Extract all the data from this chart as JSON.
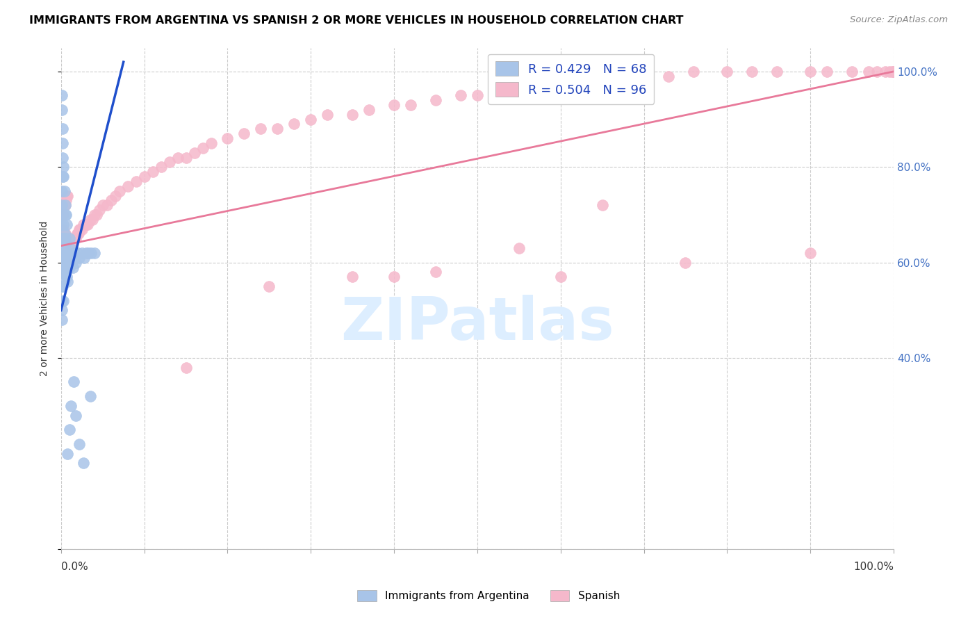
{
  "title": "IMMIGRANTS FROM ARGENTINA VS SPANISH 2 OR MORE VEHICLES IN HOUSEHOLD CORRELATION CHART",
  "source": "Source: ZipAtlas.com",
  "ylabel": "2 or more Vehicles in Household",
  "argentina_R": 0.429,
  "argentina_N": 68,
  "spanish_R": 0.504,
  "spanish_N": 96,
  "argentina_color": "#a8c4e8",
  "argentina_edge": "#a8c4e8",
  "spanish_color": "#f5b8cb",
  "spanish_edge": "#f5b8cb",
  "argentina_line_color": "#1f4fcc",
  "spanish_line_color": "#e8799a",
  "legend_argentina_label": "Immigrants from Argentina",
  "legend_spanish_label": "Spanish",
  "watermark_text": "ZIPatlas",
  "watermark_color": "#ddeeff",
  "xlim": [
    0.0,
    1.0
  ],
  "ylim": [
    0.0,
    1.05
  ],
  "ytick_positions": [
    0.0,
    0.4,
    0.6,
    0.8,
    1.0
  ],
  "ytick_labels": [
    "",
    "40.0%",
    "60.0%",
    "80.0%",
    "100.0%"
  ],
  "arg_x": [
    0.0005,
    0.0006,
    0.0007,
    0.0008,
    0.0009,
    0.001,
    0.001,
    0.001,
    0.001,
    0.001,
    0.0015,
    0.0015,
    0.002,
    0.002,
    0.002,
    0.002,
    0.003,
    0.003,
    0.003,
    0.003,
    0.004,
    0.004,
    0.004,
    0.005,
    0.005,
    0.005,
    0.006,
    0.006,
    0.007,
    0.007,
    0.008,
    0.008,
    0.009,
    0.01,
    0.01,
    0.011,
    0.012,
    0.013,
    0.014,
    0.015,
    0.016,
    0.018,
    0.02,
    0.022,
    0.025,
    0.028,
    0.03,
    0.033,
    0.036,
    0.04,
    0.001,
    0.001,
    0.002,
    0.002,
    0.003,
    0.003,
    0.004,
    0.005,
    0.006,
    0.007,
    0.008,
    0.01,
    0.012,
    0.015,
    0.018,
    0.022,
    0.027,
    0.035
  ],
  "arg_y": [
    0.68,
    0.65,
    0.62,
    0.72,
    0.75,
    0.58,
    0.55,
    0.52,
    0.5,
    0.48,
    0.82,
    0.78,
    0.7,
    0.65,
    0.6,
    0.55,
    0.68,
    0.63,
    0.58,
    0.52,
    0.66,
    0.61,
    0.56,
    0.7,
    0.65,
    0.6,
    0.64,
    0.59,
    0.62,
    0.57,
    0.61,
    0.56,
    0.6,
    0.65,
    0.59,
    0.63,
    0.61,
    0.6,
    0.59,
    0.62,
    0.61,
    0.6,
    0.62,
    0.61,
    0.62,
    0.61,
    0.62,
    0.62,
    0.62,
    0.62,
    0.95,
    0.92,
    0.88,
    0.85,
    0.8,
    0.78,
    0.75,
    0.72,
    0.7,
    0.68,
    0.2,
    0.25,
    0.3,
    0.35,
    0.28,
    0.22,
    0.18,
    0.32
  ],
  "sp_x": [
    0.003,
    0.005,
    0.006,
    0.007,
    0.008,
    0.009,
    0.01,
    0.011,
    0.012,
    0.013,
    0.014,
    0.015,
    0.016,
    0.017,
    0.018,
    0.019,
    0.02,
    0.021,
    0.022,
    0.023,
    0.025,
    0.027,
    0.03,
    0.032,
    0.035,
    0.038,
    0.04,
    0.043,
    0.046,
    0.05,
    0.055,
    0.06,
    0.065,
    0.07,
    0.08,
    0.09,
    0.1,
    0.11,
    0.12,
    0.13,
    0.14,
    0.15,
    0.16,
    0.17,
    0.18,
    0.2,
    0.22,
    0.24,
    0.26,
    0.28,
    0.3,
    0.32,
    0.35,
    0.37,
    0.4,
    0.42,
    0.45,
    0.48,
    0.5,
    0.53,
    0.56,
    0.6,
    0.64,
    0.68,
    0.7,
    0.73,
    0.76,
    0.8,
    0.83,
    0.86,
    0.9,
    0.92,
    0.95,
    0.97,
    0.98,
    0.99,
    0.995,
    0.998,
    1.0,
    1.0,
    0.003,
    0.004,
    0.005,
    0.006,
    0.007,
    0.008,
    0.35,
    0.45,
    0.55,
    0.65,
    0.15,
    0.25,
    0.4,
    0.6,
    0.75,
    0.9
  ],
  "sp_y": [
    0.67,
    0.66,
    0.65,
    0.65,
    0.64,
    0.64,
    0.65,
    0.64,
    0.64,
    0.64,
    0.64,
    0.65,
    0.65,
    0.65,
    0.65,
    0.66,
    0.66,
    0.66,
    0.67,
    0.67,
    0.67,
    0.68,
    0.68,
    0.68,
    0.69,
    0.69,
    0.7,
    0.7,
    0.71,
    0.72,
    0.72,
    0.73,
    0.74,
    0.75,
    0.76,
    0.77,
    0.78,
    0.79,
    0.8,
    0.81,
    0.82,
    0.82,
    0.83,
    0.84,
    0.85,
    0.86,
    0.87,
    0.88,
    0.88,
    0.89,
    0.9,
    0.91,
    0.91,
    0.92,
    0.93,
    0.93,
    0.94,
    0.95,
    0.95,
    0.96,
    0.97,
    0.97,
    0.98,
    0.98,
    0.99,
    0.99,
    1.0,
    1.0,
    1.0,
    1.0,
    1.0,
    1.0,
    1.0,
    1.0,
    1.0,
    1.0,
    1.0,
    1.0,
    1.0,
    1.0,
    0.7,
    0.72,
    0.72,
    0.73,
    0.74,
    0.74,
    0.57,
    0.58,
    0.63,
    0.72,
    0.38,
    0.55,
    0.57,
    0.57,
    0.6,
    0.62
  ],
  "arg_line_x0": 0.0,
  "arg_line_x1": 0.075,
  "arg_line_y0": 0.5,
  "arg_line_y1": 1.02,
  "sp_line_x0": 0.0,
  "sp_line_x1": 1.0,
  "sp_line_y0": 0.635,
  "sp_line_y1": 1.0
}
